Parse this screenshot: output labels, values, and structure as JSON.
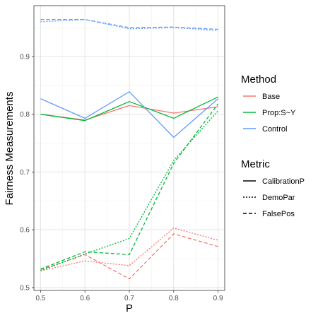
{
  "chart_data": {
    "type": "line",
    "title": "",
    "xlabel": "P",
    "ylabel": "Fairness Measurements",
    "x": [
      0.5,
      0.6,
      0.7,
      0.8,
      0.9
    ],
    "x_ticks": [
      "0.5",
      "0.6",
      "0.7",
      "0.8",
      "0.9"
    ],
    "y_ticks": [
      "0.5",
      "0.6",
      "0.7",
      "0.8",
      "0.9"
    ],
    "xlim": [
      0.485,
      0.915
    ],
    "ylim": [
      0.495,
      0.988
    ],
    "grid": true,
    "legend_position": "right",
    "method_legend": {
      "title": "Method",
      "items": [
        {
          "label": "Base",
          "color": "#F8766D"
        },
        {
          "label": "Prop:S~Y",
          "color": "#00BA38"
        },
        {
          "label": "Control",
          "color": "#619CFF"
        }
      ]
    },
    "metric_legend": {
      "title": "Metric",
      "items": [
        {
          "label": "CalibrationP",
          "dash": "solid"
        },
        {
          "label": "DemoPar",
          "dash": "dotted"
        },
        {
          "label": "FalsePos",
          "dash": "dashed"
        }
      ]
    },
    "series": [
      {
        "method": "Base",
        "metric": "CalibrationP",
        "values": [
          0.8,
          0.79,
          0.815,
          0.802,
          0.813
        ]
      },
      {
        "method": "Base",
        "metric": "DemoPar",
        "values": [
          0.529,
          0.546,
          0.538,
          0.603,
          0.582
        ]
      },
      {
        "method": "Base",
        "metric": "FalsePos",
        "values": [
          0.531,
          0.557,
          0.515,
          0.593,
          0.571
        ]
      },
      {
        "method": "Prop:S~Y",
        "metric": "CalibrationP",
        "values": [
          0.8,
          0.789,
          0.822,
          0.793,
          0.83
        ]
      },
      {
        "method": "Prop:S~Y",
        "metric": "DemoPar",
        "values": [
          0.529,
          0.558,
          0.585,
          0.72,
          0.806
        ]
      },
      {
        "method": "Prop:S~Y",
        "metric": "FalsePos",
        "values": [
          0.532,
          0.562,
          0.557,
          0.715,
          0.818
        ]
      },
      {
        "method": "Control",
        "metric": "CalibrationP",
        "values": [
          0.827,
          0.793,
          0.839,
          0.76,
          0.827
        ]
      },
      {
        "method": "Control",
        "metric": "DemoPar",
        "values": [
          0.96,
          0.964,
          0.948,
          0.95,
          0.945
        ]
      },
      {
        "method": "Control",
        "metric": "FalsePos",
        "values": [
          0.964,
          0.964,
          0.95,
          0.951,
          0.947
        ]
      }
    ]
  }
}
